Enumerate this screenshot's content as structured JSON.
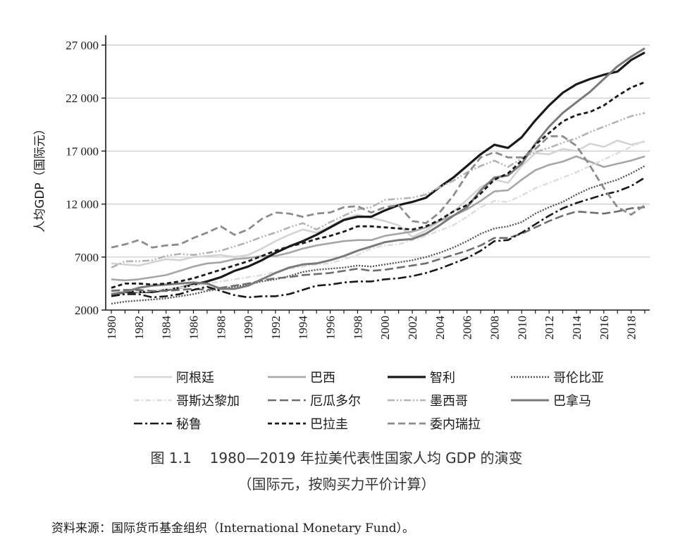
{
  "chart_data": {
    "type": "line",
    "ylabel": "人均GDP（国际元）",
    "ylim": [
      2000,
      27000
    ],
    "yticks": [
      2000,
      7000,
      12000,
      17000,
      22000,
      27000
    ],
    "ytick_labels": [
      "2000",
      "7000",
      "12 000",
      "17 000",
      "22 000",
      "27 000"
    ],
    "xticks": [
      1980,
      1982,
      1984,
      1986,
      1988,
      1990,
      1992,
      1994,
      1996,
      1998,
      2000,
      2002,
      2004,
      2006,
      2008,
      2010,
      2012,
      2014,
      2016,
      2018
    ],
    "x": [
      1980,
      1981,
      1982,
      1983,
      1984,
      1985,
      1986,
      1987,
      1988,
      1989,
      1990,
      1991,
      1992,
      1993,
      1994,
      1995,
      1996,
      1997,
      1998,
      1999,
      2000,
      2001,
      2002,
      2003,
      2004,
      2005,
      2006,
      2007,
      2008,
      2009,
      2010,
      2011,
      2012,
      2013,
      2014,
      2015,
      2016,
      2017,
      2018,
      2019
    ],
    "grid": "horizontal",
    "series": [
      {
        "name": "阿根廷",
        "color": "#d4d4d4",
        "dash": "",
        "width": 2.6,
        "values": [
          6400,
          6300,
          6200,
          6500,
          6800,
          6700,
          7000,
          7100,
          7200,
          7000,
          7200,
          7800,
          8500,
          9100,
          9600,
          9300,
          9900,
          10600,
          11000,
          10700,
          10400,
          10000,
          8900,
          9500,
          10400,
          11300,
          12400,
          13600,
          14300,
          14000,
          15600,
          16800,
          16700,
          17200,
          17000,
          17700,
          17400,
          18000,
          17600,
          17900
        ]
      },
      {
        "name": "巴西",
        "color": "#a6a6a6",
        "dash": "",
        "width": 2.6,
        "values": [
          4900,
          4800,
          4900,
          5100,
          5300,
          5700,
          6100,
          6400,
          6500,
          6800,
          6900,
          7100,
          7100,
          7400,
          7800,
          8100,
          8300,
          8500,
          8600,
          8600,
          9000,
          9200,
          9400,
          9800,
          10400,
          10900,
          11500,
          12300,
          13200,
          13300,
          14300,
          15200,
          15700,
          16000,
          16500,
          16000,
          15500,
          15800,
          16100,
          16500
        ]
      },
      {
        "name": "智利",
        "color": "#1a1a1a",
        "dash": "",
        "width": 3.2,
        "values": [
          3400,
          3700,
          3700,
          3700,
          3900,
          4100,
          4400,
          4700,
          5100,
          5700,
          6100,
          6700,
          7400,
          8000,
          8500,
          9100,
          9800,
          10500,
          10800,
          10800,
          11400,
          11900,
          12200,
          12600,
          13600,
          14500,
          15600,
          16700,
          17600,
          17300,
          18300,
          19900,
          21300,
          22500,
          23300,
          23800,
          24200,
          24500,
          25600,
          26300
        ]
      },
      {
        "name": "哥伦比亚",
        "color": "#555555",
        "dash": "2,2",
        "width": 2.4,
        "values": [
          2600,
          2800,
          2900,
          3000,
          3100,
          3300,
          3500,
          3800,
          4000,
          4200,
          4400,
          4700,
          4900,
          5200,
          5600,
          5800,
          5900,
          6000,
          6200,
          6100,
          6300,
          6500,
          6700,
          7000,
          7400,
          7900,
          8500,
          9200,
          9700,
          9900,
          10300,
          11100,
          11700,
          12200,
          12900,
          13500,
          13900,
          14300,
          14900,
          15600
        ]
      },
      {
        "name": "哥斯达黎加",
        "color": "#dedede",
        "dash": "8,3,2,3",
        "width": 2.6,
        "values": [
          3900,
          3900,
          3700,
          3800,
          4000,
          4100,
          4300,
          4500,
          4700,
          4900,
          5100,
          5300,
          5600,
          5900,
          6100,
          6300,
          6400,
          6800,
          7200,
          7800,
          8100,
          8200,
          8600,
          9000,
          9500,
          10000,
          10800,
          11700,
          12300,
          12200,
          12800,
          13500,
          14000,
          14500,
          15000,
          15600,
          16200,
          16800,
          17400,
          18000
        ]
      },
      {
        "name": "厄瓜多尔",
        "color": "#6e6e6e",
        "dash": "12,5",
        "width": 2.6,
        "values": [
          3800,
          3900,
          3900,
          3800,
          3800,
          3900,
          4000,
          3900,
          4100,
          4300,
          4500,
          4800,
          5000,
          5100,
          5300,
          5400,
          5500,
          5700,
          5900,
          5700,
          5800,
          6000,
          6200,
          6400,
          6800,
          7200,
          7600,
          8100,
          8800,
          8800,
          9200,
          9800,
          10400,
          10900,
          11300,
          11200,
          11100,
          11300,
          11600,
          11700
        ]
      },
      {
        "name": "墨西哥",
        "color": "#b3b3b3",
        "dash": "10,3,2,3,2,3",
        "width": 2.6,
        "values": [
          6000,
          6600,
          6600,
          6700,
          7100,
          7300,
          7200,
          7400,
          7600,
          8000,
          8400,
          8900,
          9300,
          9800,
          10200,
          9600,
          10300,
          10900,
          11500,
          11700,
          12400,
          12500,
          12600,
          12900,
          13600,
          14200,
          15000,
          15600,
          16100,
          15500,
          16300,
          16900,
          17300,
          17800,
          18200,
          18800,
          19300,
          19800,
          20300,
          20600
        ]
      },
      {
        "name": "巴拿马",
        "color": "#7a7a7a",
        "dash": "",
        "width": 3.0,
        "values": [
          3500,
          3700,
          4100,
          4300,
          4400,
          4500,
          4600,
          4500,
          4000,
          4000,
          4300,
          4900,
          5500,
          6000,
          6300,
          6400,
          6700,
          7100,
          7600,
          8000,
          8400,
          8600,
          8700,
          9200,
          10000,
          10900,
          11700,
          13300,
          14500,
          14700,
          15800,
          17700,
          19300,
          20600,
          21600,
          22600,
          23800,
          25000,
          25900,
          26700
        ]
      },
      {
        "name": "秘鲁",
        "color": "#1a1a1a",
        "dash": "12,4,3,4",
        "width": 2.6,
        "values": [
          3300,
          3500,
          3500,
          3200,
          3300,
          3500,
          3900,
          4200,
          3800,
          3400,
          3200,
          3300,
          3300,
          3500,
          3900,
          4300,
          4400,
          4600,
          4700,
          4700,
          4900,
          5000,
          5200,
          5500,
          5900,
          6400,
          6900,
          7600,
          8500,
          8600,
          9300,
          10100,
          10900,
          11600,
          12100,
          12500,
          12900,
          13200,
          13700,
          14500
        ]
      },
      {
        "name": "巴拉圭",
        "color": "#1a1a1a",
        "dash": "6,4",
        "width": 2.8,
        "values": [
          4100,
          4500,
          4500,
          4400,
          4500,
          4700,
          5000,
          5400,
          5800,
          6200,
          6600,
          7100,
          7600,
          8000,
          8300,
          8700,
          9000,
          9400,
          9900,
          9900,
          9800,
          9700,
          9600,
          9900,
          10500,
          11300,
          11900,
          13000,
          14300,
          14900,
          16100,
          17600,
          18700,
          19800,
          20400,
          20700,
          21300,
          22200,
          23000,
          23500
        ]
      },
      {
        "name": "委内瑞拉",
        "color": "#8c8c8c",
        "dash": "10,5",
        "width": 2.8,
        "values": [
          7900,
          8200,
          8600,
          7900,
          8100,
          8200,
          8800,
          9300,
          9900,
          9100,
          9600,
          10600,
          11200,
          11100,
          10800,
          11100,
          11200,
          11700,
          11800,
          11200,
          11700,
          11900,
          10400,
          10200,
          11200,
          12800,
          14800,
          16400,
          16900,
          16400,
          16400,
          17200,
          18400,
          18400,
          17500,
          15600,
          13500,
          11700,
          11000,
          11900
        ]
      }
    ]
  },
  "legend": [
    [
      "阿根廷",
      "巴西",
      "智利",
      "哥伦比亚"
    ],
    [
      "哥斯达黎加",
      "厄瓜多尔",
      "墨西哥",
      "巴拿马"
    ],
    [
      "秘鲁",
      "巴拉圭",
      "委内瑞拉"
    ]
  ],
  "caption": {
    "figure_no": "图 1.1",
    "title": "1980—2019 年拉美代表性国家人均 GDP 的演变",
    "subtitle": "（国际元，按购买力平价计算）"
  },
  "source": "资料来源：国际货币基金组织（International Monetary Fund）。"
}
